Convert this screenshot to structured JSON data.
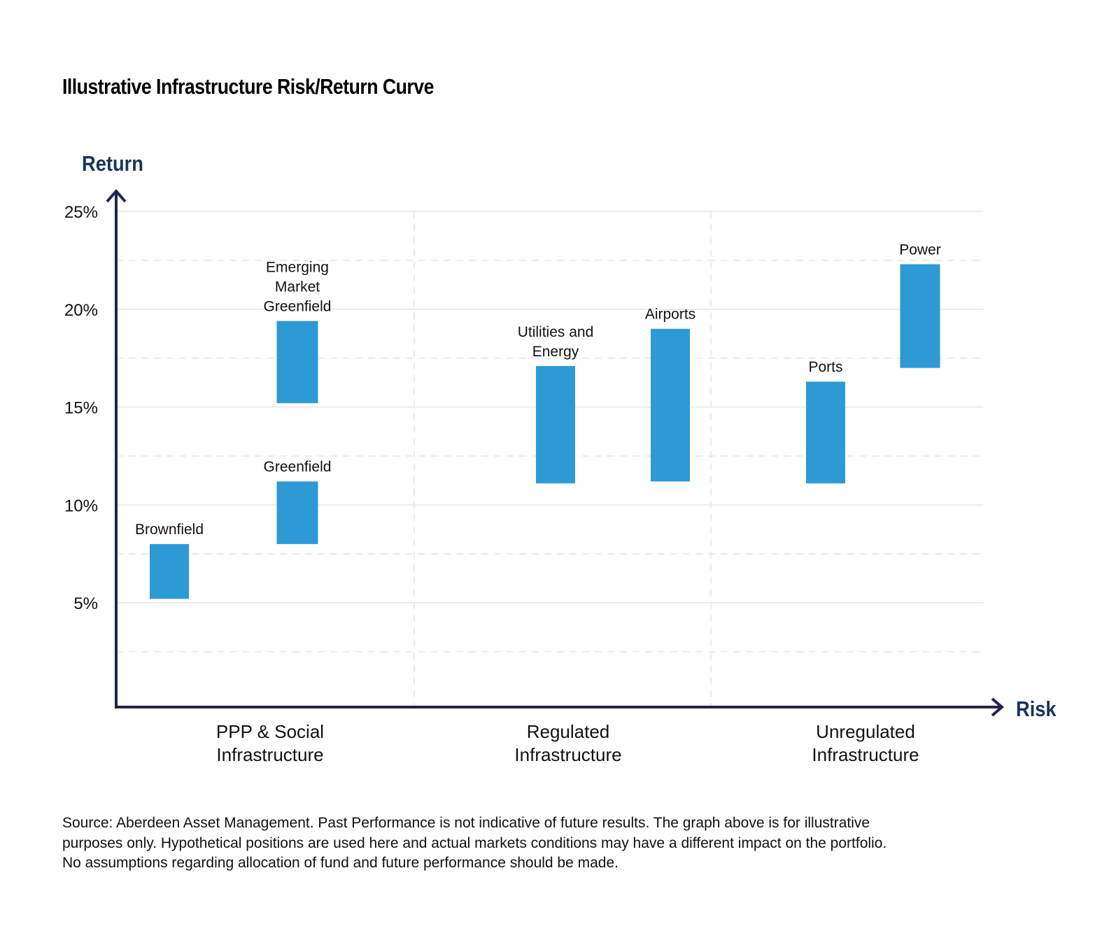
{
  "title": "Illustrative Infrastructure Risk/Return Curve",
  "chart_data": {
    "type": "floating-bar",
    "title": "Illustrative Infrastructure Risk/Return Curve",
    "ylabel": "Return",
    "xlabel": "Risk",
    "ylim": [
      0,
      25
    ],
    "y_ticks": [
      5,
      10,
      15,
      20,
      25
    ],
    "y_tick_labels": [
      "5%",
      "10%",
      "15%",
      "20%",
      "25%"
    ],
    "y_minor_gridlines": [
      2.5,
      7.5,
      12.5,
      17.5,
      22.5
    ],
    "grid": true,
    "groups": [
      {
        "name": [
          "PPP & Social",
          "Infrastructure"
        ]
      },
      {
        "name": [
          "Regulated",
          "Infrastructure"
        ]
      },
      {
        "name": [
          "Unregulated",
          "Infrastructure"
        ]
      }
    ],
    "bars": [
      {
        "label": [
          "Brownfield"
        ],
        "group": 0,
        "low": 5.2,
        "high": 8.0
      },
      {
        "label": [
          "Greenfield"
        ],
        "group": 0,
        "low": 8.0,
        "high": 11.2
      },
      {
        "label": [
          "Emerging",
          "Market",
          "Greenfield"
        ],
        "group": 0,
        "low": 15.2,
        "high": 19.4
      },
      {
        "label": [
          "Utilities and",
          "Energy"
        ],
        "group": 1,
        "low": 11.1,
        "high": 17.1
      },
      {
        "label": [
          "Airports"
        ],
        "group": 1,
        "low": 11.2,
        "high": 19.0
      },
      {
        "label": [
          "Ports"
        ],
        "group": 2,
        "low": 11.1,
        "high": 16.3
      },
      {
        "label": [
          "Power"
        ],
        "group": 2,
        "low": 17.0,
        "high": 22.3
      }
    ],
    "colors": {
      "bar": "#2d9ad5",
      "axis": "#21234f",
      "axis_label": "#1a3459",
      "grid": "#e6e6ea"
    }
  },
  "footnote": [
    "Source: Aberdeen Asset Management. Past Performance is not indicative of future results. The graph above is for illustrative",
    "purposes only. Hypothetical positions are used here and actual markets conditions may have a different impact on the portfolio.",
    "No assumptions regarding allocation of fund and future performance should be made."
  ]
}
